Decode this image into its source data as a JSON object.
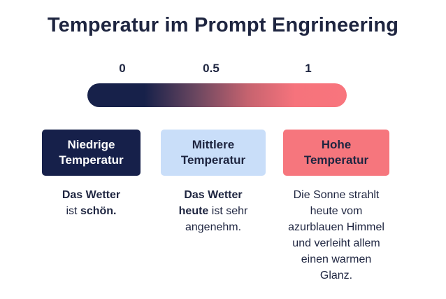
{
  "title": "Temperatur im Prompt Engrineering",
  "scale": {
    "ticks": [
      "0",
      "0.5",
      "1"
    ],
    "gradient_colors": [
      "#17214a",
      "#f8757d"
    ]
  },
  "levels": [
    {
      "label_line1": "Niedrige",
      "label_line2": "Temperatur",
      "color": "#16204a",
      "example": {
        "line1_bold": "Das Wetter",
        "line2_pre": "ist ",
        "line2_bold": "schön.",
        "line2_post": ""
      }
    },
    {
      "label_line1": "Mittlere",
      "label_line2": "Temperatur",
      "color": "#c9def9",
      "example": {
        "line1_bold": "Das Wetter",
        "line2_bold": "heute",
        "line2_post": " ist sehr",
        "line3": "angenehm."
      }
    },
    {
      "label_line1": "Hohe",
      "label_line2": "Temperatur",
      "color": "#f6767d",
      "example": {
        "lines": [
          "Die Sonne strahlt",
          "heute vom",
          "azurblauen Himmel",
          "und verleiht allem",
          "einen warmen",
          "Glanz."
        ]
      }
    }
  ]
}
